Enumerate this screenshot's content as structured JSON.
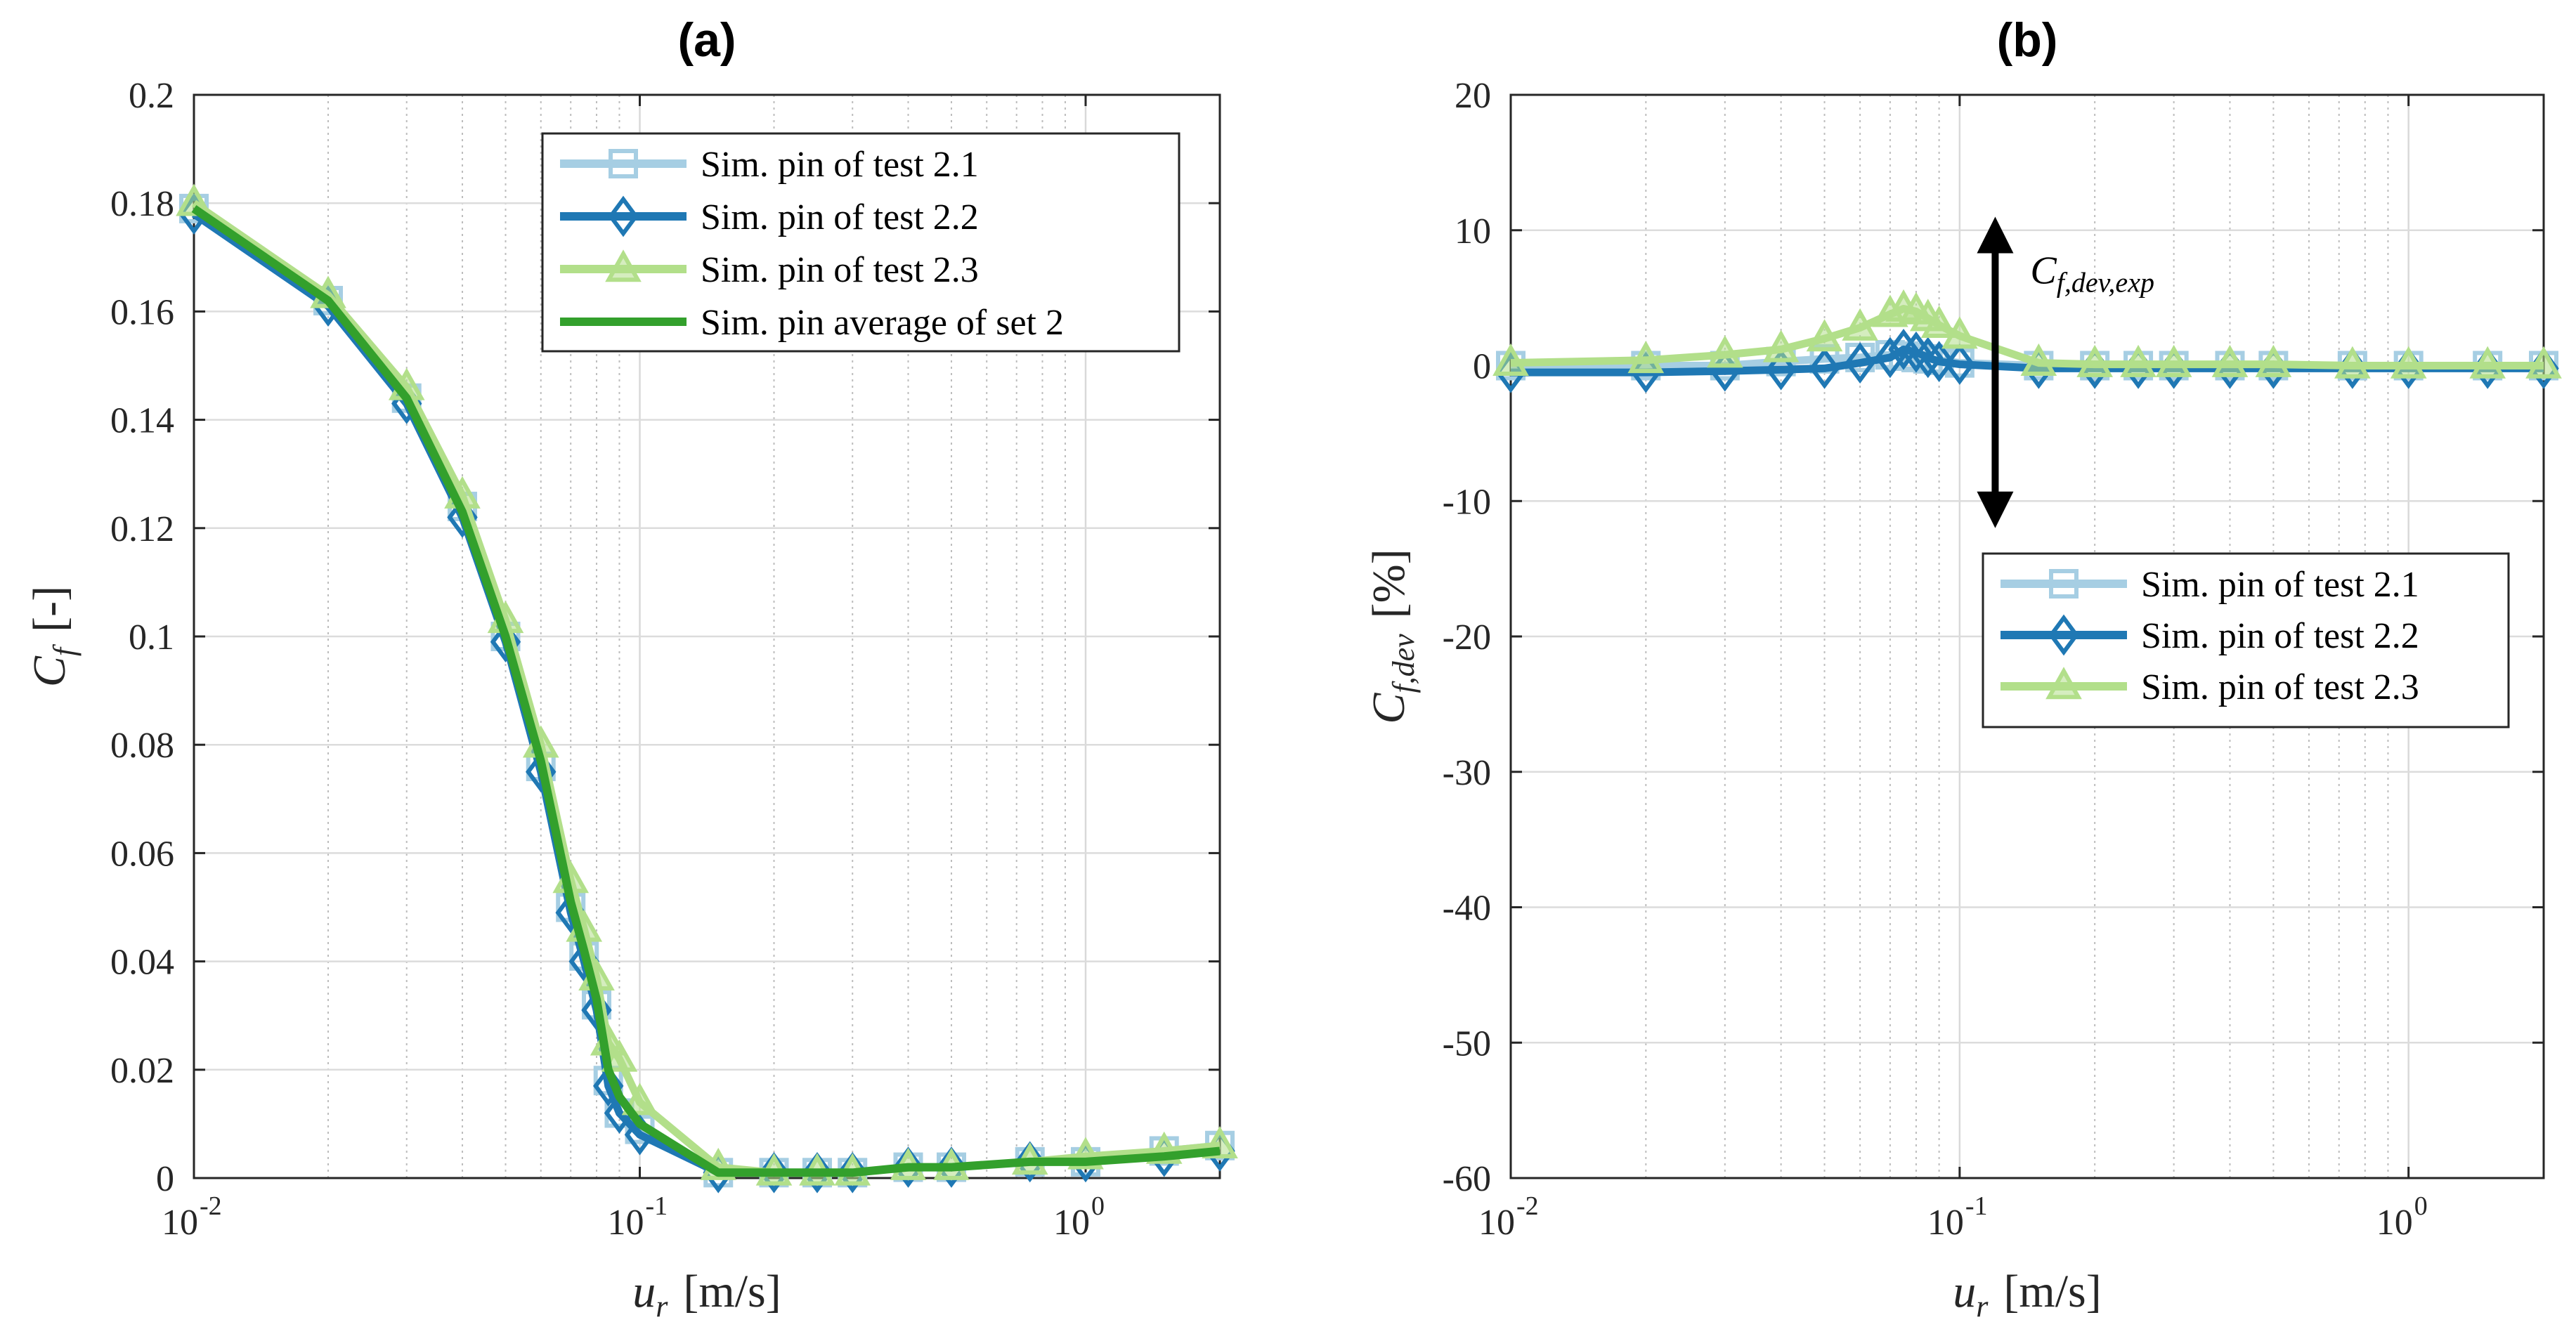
{
  "chart_data": [
    {
      "type": "line",
      "panel_label": "(a)",
      "xscale": "log",
      "xlim": [
        0.01,
        2
      ],
      "ylim": [
        0,
        0.2
      ],
      "x_ticks": [
        0.01,
        0.1,
        1
      ],
      "x_tick_labels": [
        {
          "base": "10",
          "exp": "-2"
        },
        {
          "base": "10",
          "exp": "-1"
        },
        {
          "base": "10",
          "exp": "0"
        }
      ],
      "y_ticks": [
        0,
        0.02,
        0.04,
        0.06,
        0.08,
        0.1,
        0.12,
        0.14,
        0.16,
        0.18,
        0.2
      ],
      "y_tick_labels": [
        "0",
        "0.02",
        "0.04",
        "0.06",
        "0.08",
        "0.1",
        "0.12",
        "0.14",
        "0.16",
        "0.18",
        "0.2"
      ],
      "xlabel": {
        "main": "u",
        "sub": "r",
        "units": "[m/s]"
      },
      "ylabel": {
        "main": "C",
        "sub": "f",
        "units": "[-]"
      },
      "grid": true,
      "legend_position": "top-right",
      "x": [
        0.01,
        0.02,
        0.03,
        0.04,
        0.05,
        0.06,
        0.07,
        0.075,
        0.08,
        0.085,
        0.09,
        0.1,
        0.15,
        0.2,
        0.25,
        0.3,
        0.4,
        0.5,
        0.75,
        1,
        1.5,
        2
      ],
      "series": [
        {
          "name": "Sim. pin of test 2.1",
          "color": "#a6cee3",
          "marker": "square",
          "values": [
            0.179,
            0.162,
            0.144,
            0.124,
            0.1,
            0.076,
            0.05,
            0.041,
            0.032,
            0.018,
            0.012,
            0.009,
            0.001,
            0.001,
            0.001,
            0.001,
            0.002,
            0.002,
            0.003,
            0.003,
            0.005,
            0.006
          ]
        },
        {
          "name": "Sim. pin of test 2.2",
          "color": "#1f78b4",
          "marker": "diamond",
          "values": [
            0.178,
            0.161,
            0.143,
            0.122,
            0.099,
            0.075,
            0.049,
            0.04,
            0.031,
            0.017,
            0.012,
            0.008,
            0.001,
            0.001,
            0.001,
            0.001,
            0.002,
            0.002,
            0.003,
            0.003,
            0.004,
            0.005
          ]
        },
        {
          "name": "Sim. pin of test 2.3",
          "color": "#b2df8a",
          "marker": "triangle",
          "values": [
            0.18,
            0.163,
            0.146,
            0.126,
            0.103,
            0.08,
            0.055,
            0.046,
            0.037,
            0.025,
            0.022,
            0.014,
            0.002,
            0.001,
            0.001,
            0.001,
            0.002,
            0.002,
            0.003,
            0.004,
            0.005,
            0.006
          ]
        },
        {
          "name": "Sim. pin average of set 2",
          "color": "#33a02c",
          "marker": "none",
          "values": [
            0.179,
            0.162,
            0.144,
            0.123,
            0.1,
            0.077,
            0.051,
            0.042,
            0.033,
            0.02,
            0.015,
            0.01,
            0.001,
            0.001,
            0.001,
            0.001,
            0.002,
            0.002,
            0.003,
            0.003,
            0.004,
            0.005
          ]
        }
      ]
    },
    {
      "type": "line",
      "panel_label": "(b)",
      "xscale": "log",
      "xlim": [
        0.01,
        2
      ],
      "ylim": [
        -60,
        20
      ],
      "x_ticks": [
        0.01,
        0.1,
        1
      ],
      "x_tick_labels": [
        {
          "base": "10",
          "exp": "-2"
        },
        {
          "base": "10",
          "exp": "-1"
        },
        {
          "base": "10",
          "exp": "0"
        }
      ],
      "y_ticks": [
        -60,
        -50,
        -40,
        -30,
        -20,
        -10,
        0,
        10,
        20
      ],
      "y_tick_labels": [
        "-60",
        "-50",
        "-40",
        "-30",
        "-20",
        "-10",
        "0",
        "10",
        "20"
      ],
      "xlabel": {
        "main": "u",
        "sub": "r",
        "units": "[m/s]"
      },
      "ylabel": {
        "main": "C",
        "sub": "f,dev",
        "units": "[%]"
      },
      "grid": true,
      "legend_position": "center-right",
      "annotation": {
        "main": "C",
        "sub": "f,dev,exp",
        "arrow_from": 11,
        "arrow_to": -12,
        "arrow_x": 0.12
      },
      "x": [
        0.01,
        0.02,
        0.03,
        0.04,
        0.05,
        0.06,
        0.07,
        0.075,
        0.08,
        0.085,
        0.09,
        0.1,
        0.15,
        0.2,
        0.25,
        0.3,
        0.4,
        0.5,
        0.75,
        1,
        1.5,
        2
      ],
      "series": [
        {
          "name": "Sim. pin of test 2.1",
          "color": "#a6cee3",
          "marker": "square",
          "values": [
            0,
            0,
            0,
            0.3,
            0.5,
            0.6,
            0.8,
            0.7,
            0.6,
            0.5,
            0.4,
            0.2,
            0,
            0,
            0,
            0,
            0,
            0,
            0,
            0,
            0,
            0
          ]
        },
        {
          "name": "Sim. pin of test 2.2",
          "color": "#1f78b4",
          "marker": "diamond",
          "values": [
            -0.5,
            -0.5,
            -0.4,
            -0.3,
            -0.2,
            0.2,
            0.6,
            1.2,
            1.0,
            0.6,
            0.3,
            0.1,
            -0.2,
            -0.2,
            -0.2,
            -0.2,
            -0.2,
            -0.2,
            -0.2,
            -0.2,
            -0.2,
            -0.2
          ]
        },
        {
          "name": "Sim. pin of test 2.3",
          "color": "#b2df8a",
          "marker": "triangle",
          "values": [
            0.2,
            0.4,
            0.8,
            1.2,
            2.0,
            2.8,
            3.8,
            4.2,
            4.0,
            3.5,
            3.0,
            2.2,
            0.2,
            0.1,
            0.1,
            0.1,
            0.1,
            0.1,
            0,
            0,
            0,
            0
          ]
        }
      ]
    }
  ]
}
